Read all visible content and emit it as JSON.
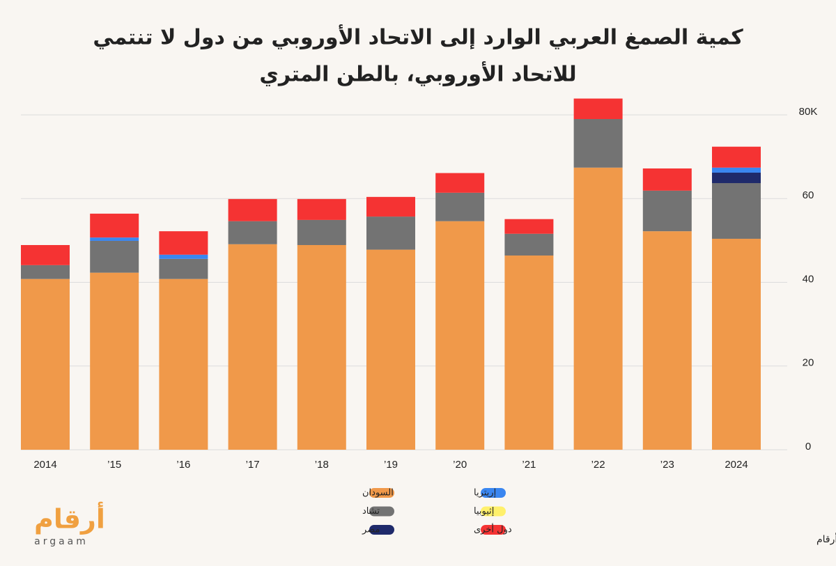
{
  "chart_data": {
    "type": "stacked_bar",
    "title": [
      "كمية الصمغ العربي الوارد إلى الاتحاد الأوروبي من دول لا تنتمي",
      "للاتحاد الأوروبي، بالطن المتري"
    ],
    "categories": [
      "2014",
      "’15",
      "’16",
      "’17",
      "’18",
      "’19",
      "’20",
      "’21",
      "’22",
      "’23",
      "2024"
    ],
    "series": [
      {
        "name": "السودان",
        "color": "#f0994a",
        "values": [
          40.8,
          42.3,
          40.8,
          49.1,
          48.9,
          47.8,
          54.6,
          46.4,
          67.4,
          52.2,
          50.4
        ]
      },
      {
        "name": "تشاد",
        "color": "#737373",
        "values": [
          3.3,
          7.6,
          4.8,
          5.5,
          6.0,
          7.9,
          6.8,
          5.2,
          11.6,
          9.7,
          13.3
        ]
      },
      {
        "name": "مصر",
        "color": "#1f2a6b",
        "values": [
          0,
          0,
          0,
          0,
          0,
          0,
          0,
          0,
          0,
          0,
          2.5
        ]
      },
      {
        "name": "إريتريا",
        "color": "#3a86f0",
        "values": [
          0,
          0.8,
          1.0,
          0,
          0,
          0,
          0,
          0,
          0,
          0,
          1.2
        ]
      },
      {
        "name": "إثيوبيا",
        "color": "#fff06b",
        "values": [
          0,
          0,
          0,
          0,
          0,
          0,
          0,
          0,
          0,
          0,
          0
        ]
      },
      {
        "name": "دول أخرى",
        "color": "#f53333",
        "values": [
          4.8,
          5.7,
          5.6,
          5.3,
          5.0,
          4.7,
          4.7,
          3.5,
          4.9,
          5.3,
          5.0
        ]
      }
    ],
    "ylim": [
      0,
      80
    ],
    "yticks": [
      0,
      20,
      40,
      60,
      {
        "value": 80,
        "label": "80K"
      }
    ],
    "grid": true,
    "source": "المصدر : مؤسسة S&P Global / أرقام",
    "logo": {
      "arabic": "أرقام",
      "latin": "argaam"
    }
  }
}
